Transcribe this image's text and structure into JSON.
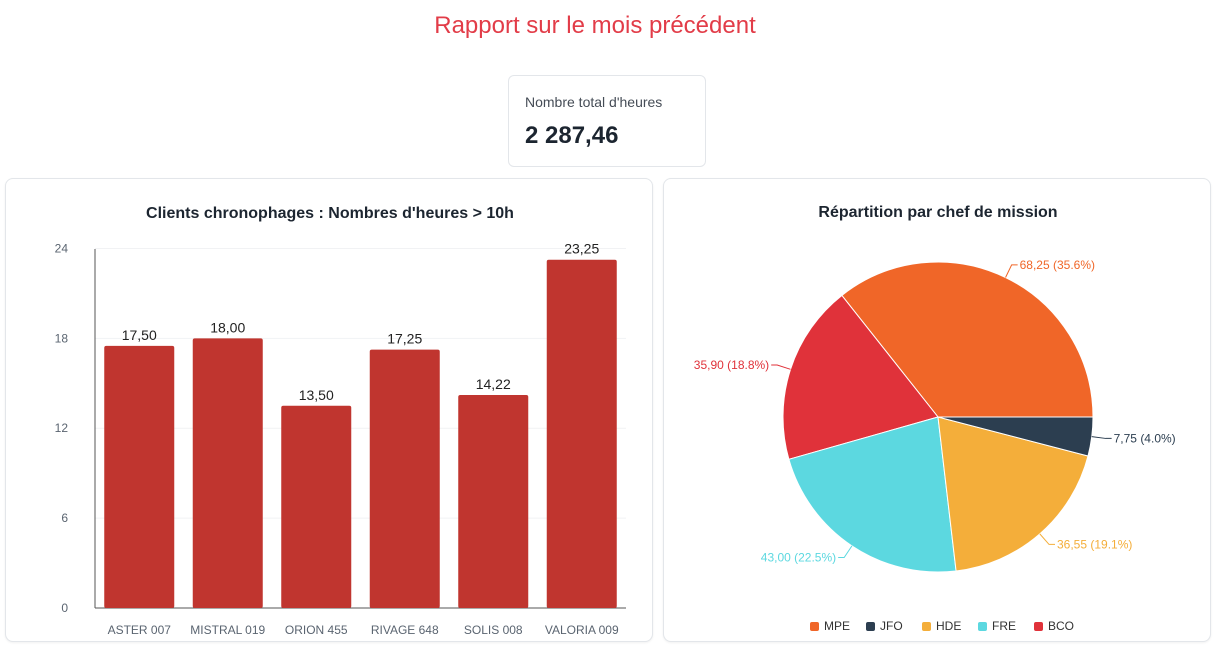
{
  "page": {
    "title": "Rapport sur le mois précédent"
  },
  "kpi": {
    "label": "Nombre total d'heures",
    "value": "2 287,46"
  },
  "chart_data": [
    {
      "type": "bar",
      "title": "Clients chronophages : Nombres d'heures > 10h",
      "categories": [
        "ASTER 007",
        "MISTRAL 019",
        "ORION 455",
        "RIVAGE 648",
        "SOLIS 008",
        "VALORIA 009"
      ],
      "values": [
        17.5,
        18.0,
        13.5,
        17.25,
        14.22,
        23.25
      ],
      "value_labels": [
        "17,50",
        "18,00",
        "13,50",
        "17,25",
        "14,22",
        "23,25"
      ],
      "yticks": [
        0,
        6,
        12,
        18,
        24
      ],
      "ylim": [
        0,
        24.5
      ],
      "grid": true,
      "color": "#c0352f"
    },
    {
      "type": "pie",
      "title": "Répartition par chef de mission",
      "slices": [
        {
          "name": "MPE",
          "value": 68.25,
          "label": "68,25 (35.6%)",
          "color": "#f06628"
        },
        {
          "name": "BCO",
          "value": 35.9,
          "label": "35,90 (18.8%)",
          "color": "#e0323a"
        },
        {
          "name": "FRE",
          "value": 43.0,
          "label": "43,00 (22.5%)",
          "color": "#5cd8e0"
        },
        {
          "name": "HDE",
          "value": 36.55,
          "label": "36,55 (19.1%)",
          "color": "#f4ae3a"
        },
        {
          "name": "JFO",
          "value": 7.75,
          "label": "7,75 (4.0%)",
          "color": "#2c3e50"
        }
      ],
      "legend": [
        "MPE",
        "JFO",
        "HDE",
        "FRE",
        "BCO"
      ],
      "legend_position": "bottom"
    }
  ]
}
